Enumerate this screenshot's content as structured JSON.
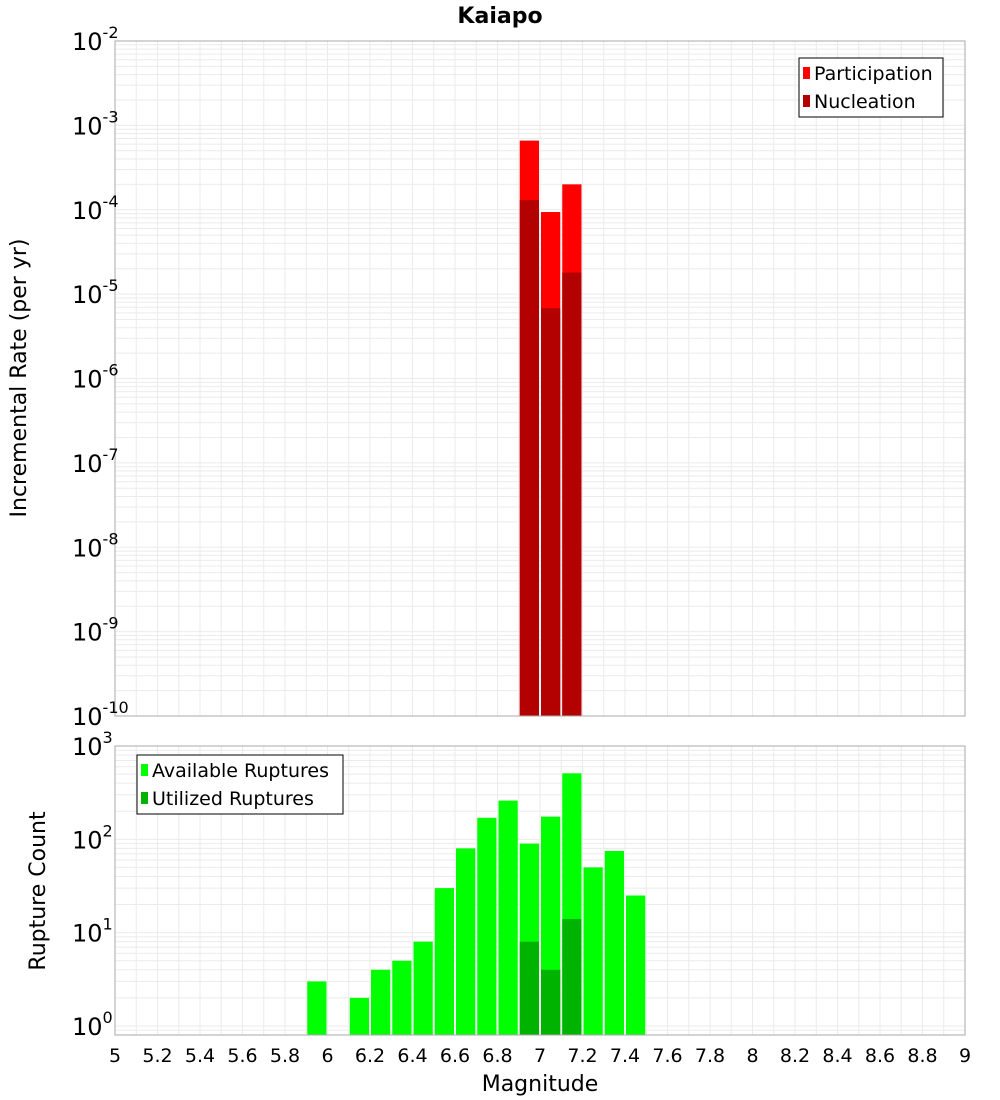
{
  "chart_data": {
    "title": "Kaiapo",
    "xlabel": "Magnitude",
    "xlim": [
      5,
      9
    ],
    "xticks": [
      "5",
      "5.2",
      "5.4",
      "5.6",
      "5.8",
      "6",
      "6.2",
      "6.4",
      "6.6",
      "6.8",
      "7",
      "7.2",
      "7.4",
      "7.6",
      "7.8",
      "8",
      "8.2",
      "8.4",
      "8.6",
      "8.8",
      "9"
    ],
    "bin_width": 0.1,
    "panels": [
      {
        "type": "bar",
        "ylabel": "Incremental Rate (per yr)",
        "yscale": "log",
        "ylim": [
          1e-10,
          0.01
        ],
        "ytick_exponents": [
          "-10",
          "-9",
          "-8",
          "-7",
          "-6",
          "-5",
          "-4",
          "-3",
          "-2"
        ],
        "grid": true,
        "legend_position": "top-right",
        "series": [
          {
            "name": "Participation",
            "color": "#ff0000",
            "x": [
              6.95,
              7.05,
              7.15
            ],
            "values": [
              0.00066,
              9.4e-05,
              0.0002
            ]
          },
          {
            "name": "Nucleation",
            "color": "#b30000",
            "x": [
              6.95,
              7.05,
              7.15
            ],
            "values": [
              0.00013,
              6.8e-06,
              1.8e-05
            ]
          }
        ]
      },
      {
        "type": "bar",
        "ylabel": "Rupture Count",
        "yscale": "log",
        "ylim": [
          0.8,
          1000
        ],
        "ytick_exponents": [
          "0",
          "1",
          "2",
          "3"
        ],
        "grid": true,
        "legend_position": "top-left",
        "series": [
          {
            "name": "Available Ruptures",
            "color": "#00ff00",
            "x": [
              5.95,
              6.15,
              6.25,
              6.35,
              6.45,
              6.55,
              6.65,
              6.75,
              6.85,
              6.95,
              7.05,
              7.15,
              7.25,
              7.35,
              7.45
            ],
            "values": [
              3,
              2,
              4,
              5,
              8,
              30,
              80,
              170,
              260,
              90,
              175,
              510,
              50,
              75,
              25
            ]
          },
          {
            "name": "Utilized Ruptures",
            "color": "#00b300",
            "x": [
              6.95,
              7.05,
              7.15
            ],
            "values": [
              8,
              4,
              14
            ]
          }
        ]
      }
    ]
  }
}
